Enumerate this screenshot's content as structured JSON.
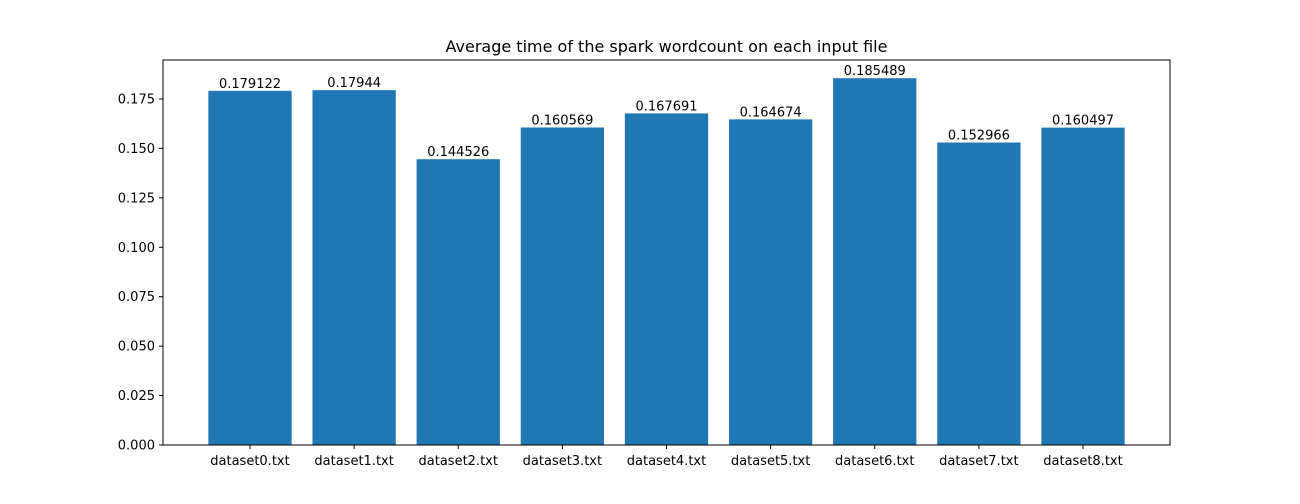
{
  "chart_data": {
    "type": "bar",
    "title": "Average time of the spark wordcount on each input file",
    "xlabel": "",
    "ylabel": "",
    "categories": [
      "dataset0.txt",
      "dataset1.txt",
      "dataset2.txt",
      "dataset3.txt",
      "dataset4.txt",
      "dataset5.txt",
      "dataset6.txt",
      "dataset7.txt",
      "dataset8.txt"
    ],
    "values": [
      0.179122,
      0.17944,
      0.144526,
      0.160569,
      0.167691,
      0.164674,
      0.185489,
      0.152966,
      0.160497
    ],
    "value_labels": [
      "0.179122",
      "0.17944",
      "0.144526",
      "0.160569",
      "0.167691",
      "0.164674",
      "0.185489",
      "0.152966",
      "0.160497"
    ],
    "ylim": [
      0,
      0.1947
    ],
    "yticks": [
      0.0,
      0.025,
      0.05,
      0.075,
      0.1,
      0.125,
      0.15,
      0.175
    ],
    "ytick_labels": [
      "0.000",
      "0.025",
      "0.050",
      "0.075",
      "0.100",
      "0.125",
      "0.150",
      "0.175"
    ],
    "grid": false,
    "bar_color": "#1f77b4",
    "axis_color": "#000000"
  }
}
